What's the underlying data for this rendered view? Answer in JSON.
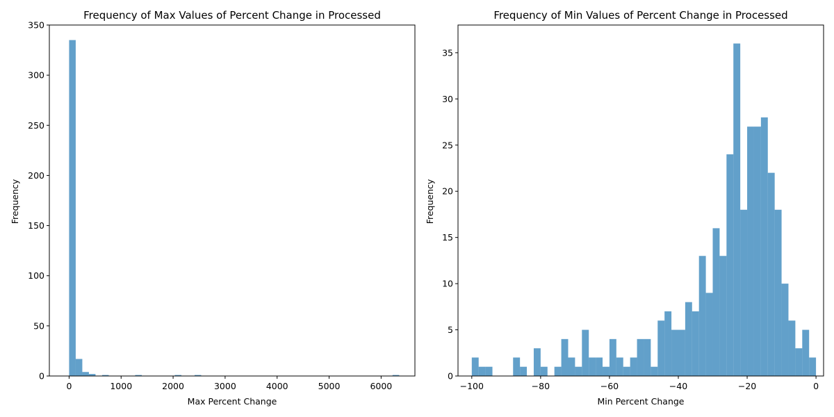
{
  "chart_data": [
    {
      "type": "bar",
      "title": "Frequency of Max Values of Percent Change in Processed",
      "xlabel": "Max Percent Change",
      "ylabel": "Frequency",
      "xlim": [
        -380,
        6650
      ],
      "ylim": [
        0,
        350
      ],
      "xticks": [
        0,
        1000,
        2000,
        3000,
        4000,
        5000,
        6000
      ],
      "yticks": [
        0,
        50,
        100,
        150,
        200,
        250,
        300,
        350
      ],
      "bar_color": "#1f77b4",
      "bar_opacity": 0.7,
      "bins": [
        {
          "x0": 0,
          "x1": 127,
          "value": 335
        },
        {
          "x0": 127,
          "x1": 254,
          "value": 17
        },
        {
          "x0": 254,
          "x1": 381,
          "value": 4
        },
        {
          "x0": 381,
          "x1": 508,
          "value": 2
        },
        {
          "x0": 635,
          "x1": 762,
          "value": 1
        },
        {
          "x0": 1270,
          "x1": 1397,
          "value": 1
        },
        {
          "x0": 2032,
          "x1": 2159,
          "value": 1
        },
        {
          "x0": 2413,
          "x1": 2540,
          "value": 1
        },
        {
          "x0": 6220,
          "x1": 6347,
          "value": 1
        }
      ]
    },
    {
      "type": "bar",
      "title": "Frequency of Min Values of Percent Change in Processed",
      "xlabel": "Min Percent Change",
      "ylabel": "Frequency",
      "xlim": [
        -104,
        2.2
      ],
      "ylim": [
        0,
        38
      ],
      "xticks": [
        -100,
        -80,
        -60,
        -40,
        -20,
        0
      ],
      "yticks": [
        0,
        5,
        10,
        15,
        20,
        25,
        30,
        35
      ],
      "bar_color": "#1f77b4",
      "bar_opacity": 0.7,
      "bin_start": -100,
      "bin_width": 2,
      "values": [
        2,
        1,
        1,
        0,
        0,
        0,
        2,
        1,
        0,
        3,
        1,
        0,
        1,
        4,
        2,
        1,
        5,
        2,
        2,
        1,
        4,
        2,
        1,
        2,
        4,
        4,
        1,
        6,
        7,
        5,
        5,
        8,
        7,
        13,
        9,
        16,
        13,
        24,
        36,
        18,
        27,
        27,
        28,
        22,
        18,
        10,
        6,
        3,
        5,
        2
      ]
    }
  ]
}
